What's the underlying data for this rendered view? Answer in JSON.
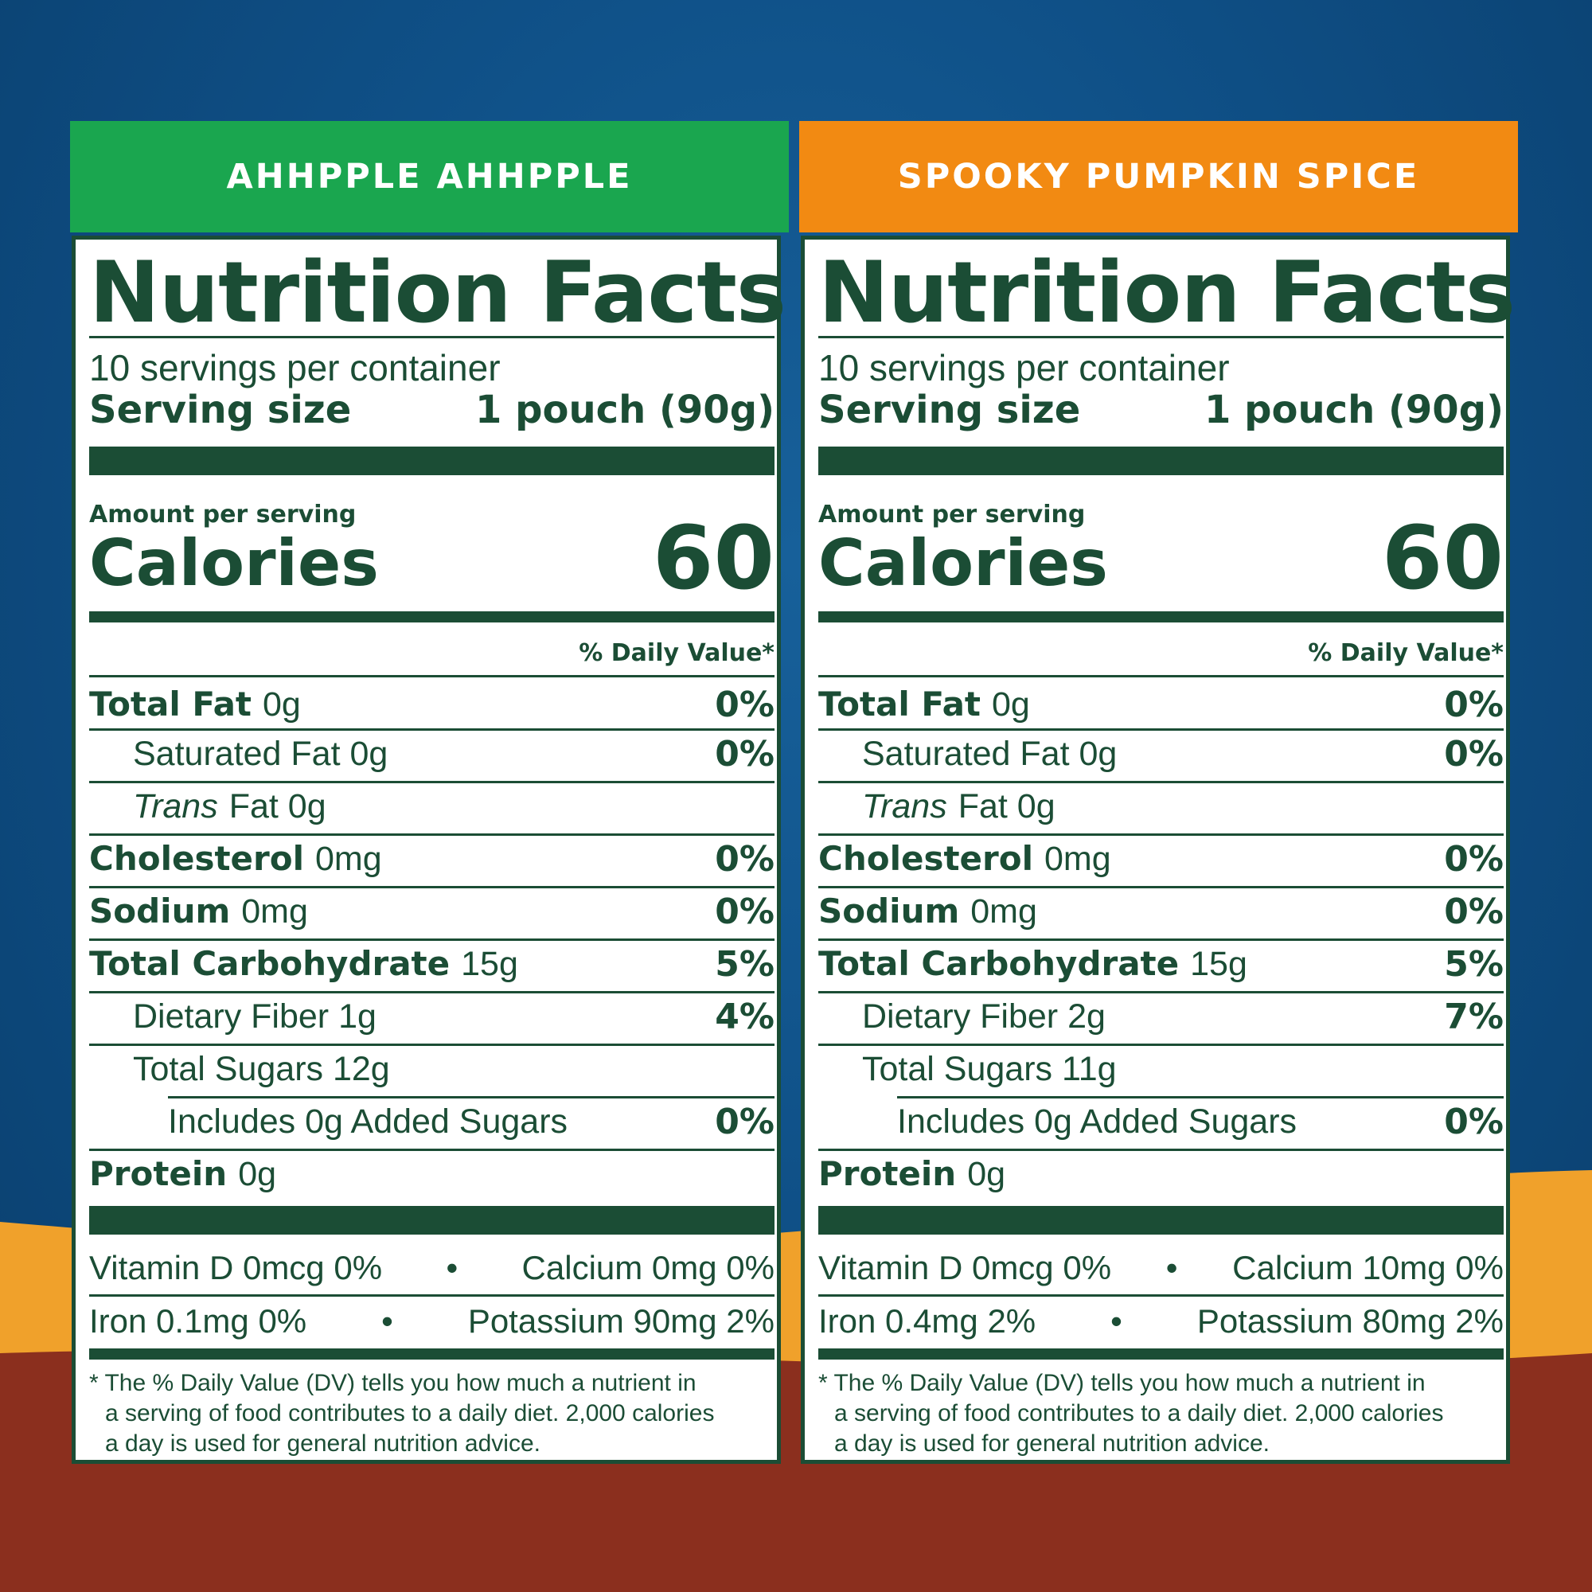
{
  "colors": {
    "green_header": "#1aa64f",
    "orange_header": "#f28a12",
    "label_ink": "#1b4d35",
    "bg_blue": "#0f5087",
    "wave_orange": "#f0a12b",
    "wave_brown": "#8b2f1e"
  },
  "panels": [
    {
      "header": "AHHPPLE AHHPPLE",
      "title": "Nutrition Facts",
      "servings": "10 servings per container",
      "serving_size_label": "Serving size",
      "serving_size_value": "1 pouch (90g)",
      "amount_per_serving": "Amount per serving",
      "calories_label": "Calories",
      "calories_value": "60",
      "dv_header": "% Daily Value*",
      "rows": [
        {
          "bold": "Total Fat",
          "amount": "0g",
          "pct": "0%"
        },
        {
          "bold": "",
          "amount": "Saturated Fat 0g",
          "pct": "0%"
        },
        {
          "italic": "Trans",
          "amount": "Fat 0g",
          "pct": ""
        },
        {
          "bold": "Cholesterol",
          "amount": "0mg",
          "pct": "0%"
        },
        {
          "bold": "Sodium",
          "amount": "0mg",
          "pct": "0%"
        },
        {
          "bold": "Total Carbohydrate",
          "amount": "15g",
          "pct": "5%"
        },
        {
          "bold": "",
          "amount": "Dietary Fiber 1g",
          "pct": "4%"
        },
        {
          "bold": "",
          "amount": "Total Sugars 12g",
          "pct": ""
        },
        {
          "bold": "",
          "amount": "Includes 0g Added Sugars",
          "pct": "0%"
        },
        {
          "bold": "Protein",
          "amount": "0g",
          "pct": ""
        }
      ],
      "vitamins": [
        {
          "left": "Vitamin D 0mcg 0%",
          "right": "Calcium 0mg 0%"
        },
        {
          "left": "Iron 0.1mg 0%",
          "right": "Potassium 90mg 2%"
        }
      ],
      "bullet": "•",
      "footnote_1": "* The % Daily Value (DV) tells you how much a nutrient in",
      "footnote_2": "a serving of food contributes to a daily diet. 2,000 calories",
      "footnote_3": "a day is used for general nutrition advice."
    },
    {
      "header": "SPOOKY PUMPKIN SPICE",
      "title": "Nutrition Facts",
      "servings": "10 servings per container",
      "serving_size_label": "Serving size",
      "serving_size_value": "1 pouch (90g)",
      "amount_per_serving": "Amount per serving",
      "calories_label": "Calories",
      "calories_value": "60",
      "dv_header": "% Daily Value*",
      "rows": [
        {
          "bold": "Total Fat",
          "amount": "0g",
          "pct": "0%"
        },
        {
          "bold": "",
          "amount": "Saturated Fat 0g",
          "pct": "0%"
        },
        {
          "italic": "Trans",
          "amount": "Fat 0g",
          "pct": ""
        },
        {
          "bold": "Cholesterol",
          "amount": "0mg",
          "pct": "0%"
        },
        {
          "bold": "Sodium",
          "amount": "0mg",
          "pct": "0%"
        },
        {
          "bold": "Total Carbohydrate",
          "amount": "15g",
          "pct": "5%"
        },
        {
          "bold": "",
          "amount": "Dietary Fiber 2g",
          "pct": "7%"
        },
        {
          "bold": "",
          "amount": "Total Sugars 11g",
          "pct": ""
        },
        {
          "bold": "",
          "amount": "Includes 0g Added Sugars",
          "pct": "0%"
        },
        {
          "bold": "Protein",
          "amount": "0g",
          "pct": ""
        }
      ],
      "vitamins": [
        {
          "left": "Vitamin D 0mcg 0%",
          "right": "Calcium 10mg 0%"
        },
        {
          "left": "Iron 0.4mg 2%",
          "right": "Potassium 80mg 2%"
        }
      ],
      "bullet": "•",
      "footnote_1": "* The % Daily Value (DV) tells you how much a nutrient in",
      "footnote_2": "a serving of food contributes to a daily diet. 2,000 calories",
      "footnote_3": "a day is used for general nutrition advice."
    }
  ]
}
